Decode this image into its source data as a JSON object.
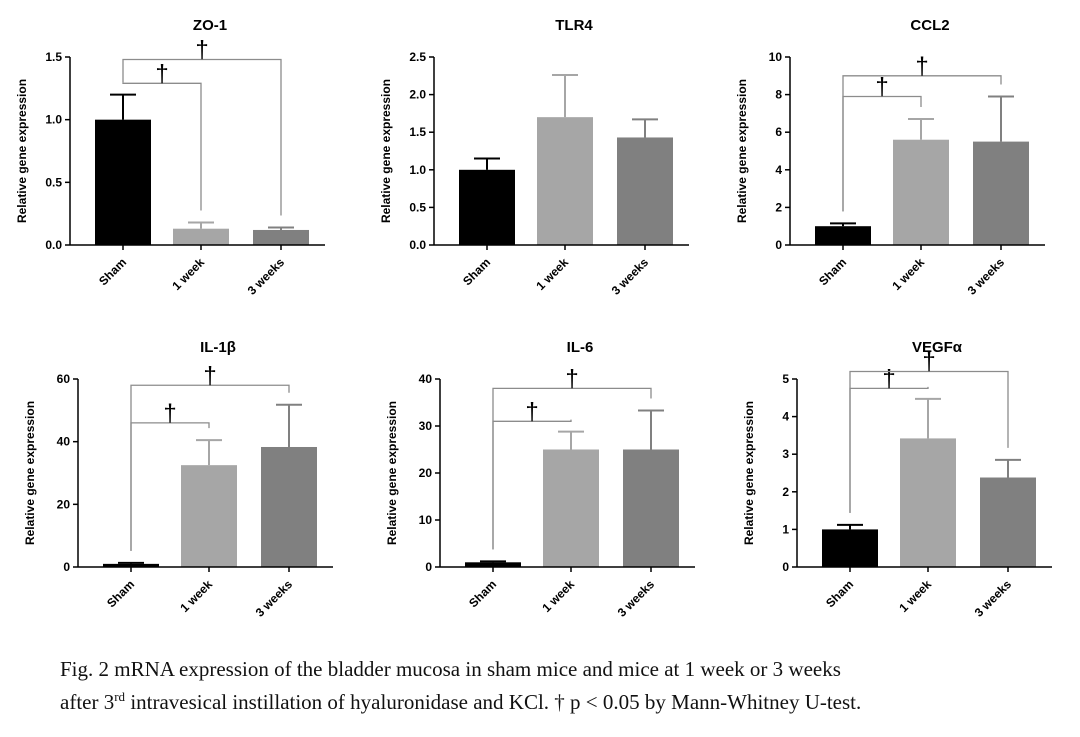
{
  "figure": {
    "caption_line1": "Fig. 2  mRNA expression of the bladder mucosa in sham mice and mice at 1 week or 3 weeks",
    "caption_line2_pre": "after 3",
    "caption_line2_sup": "rd",
    "caption_line2_post": " intravesical  instillation of hyaluronidase and KCl.  † p < 0.05 by Mann-Whitney U-test."
  },
  "colors": {
    "sham": "#000000",
    "week1": "#a6a6a6",
    "week3": "#808080",
    "axis": "#000000",
    "bracket": "#8c8c8c"
  },
  "chart_data": [
    {
      "type": "bar",
      "title": "ZO-1",
      "ylabel": "Relative gene expression",
      "categories": [
        "Sham",
        "1 week",
        "3 weeks"
      ],
      "values": [
        1.0,
        0.13,
        0.12
      ],
      "errors": [
        0.2,
        0.05,
        0.02
      ],
      "ylim": [
        0,
        1.5
      ],
      "yticks": [
        "0.0",
        "0.5",
        "1.0",
        "1.5"
      ],
      "significance": [
        {
          "from": "Sham",
          "to": "1 week",
          "level": 1.29,
          "label": "†"
        },
        {
          "from": "Sham",
          "to": "3 weeks",
          "level": 1.48,
          "label": "†"
        }
      ]
    },
    {
      "type": "bar",
      "title": "TLR4",
      "ylabel": "Relative gene expression",
      "categories": [
        "Sham",
        "1 week",
        "3 weeks"
      ],
      "values": [
        1.0,
        1.7,
        1.43
      ],
      "errors": [
        0.15,
        0.56,
        0.24
      ],
      "ylim": [
        0,
        2.5
      ],
      "yticks": [
        "0.0",
        "0.5",
        "1.0",
        "1.5",
        "2.0",
        "2.5"
      ],
      "significance": []
    },
    {
      "type": "bar",
      "title": "CCL2",
      "ylabel": "Relative gene expression",
      "categories": [
        "Sham",
        "1 week",
        "3 weeks"
      ],
      "values": [
        1.0,
        5.6,
        5.5
      ],
      "errors": [
        0.15,
        1.1,
        2.4
      ],
      "ylim": [
        0,
        10
      ],
      "yticks": [
        "0",
        "2",
        "4",
        "6",
        "8",
        "10"
      ],
      "significance": [
        {
          "from": "Sham",
          "to": "1 week",
          "level": 7.9,
          "label": "†"
        },
        {
          "from": "Sham",
          "to": "3 weeks",
          "level": 9.0,
          "label": "†"
        }
      ]
    },
    {
      "type": "bar",
      "title": "IL-1β",
      "ylabel": "Relative gene expression",
      "categories": [
        "Sham",
        "1 week",
        "3 weeks"
      ],
      "values": [
        1.0,
        32.5,
        38.3
      ],
      "errors": [
        0.3,
        8.0,
        13.5
      ],
      "ylim": [
        0,
        60
      ],
      "yticks": [
        "0",
        "20",
        "40",
        "60"
      ],
      "significance": [
        {
          "from": "Sham",
          "to": "1 week",
          "level": 46,
          "label": "†"
        },
        {
          "from": "Sham",
          "to": "3 weeks",
          "level": 58,
          "label": "†"
        }
      ]
    },
    {
      "type": "bar",
      "title": "IL-6",
      "ylabel": "Relative gene expression",
      "categories": [
        "Sham",
        "1 week",
        "3 weeks"
      ],
      "values": [
        1.0,
        25.0,
        25.0
      ],
      "errors": [
        0.2,
        3.8,
        8.3
      ],
      "ylim": [
        0,
        40
      ],
      "yticks": [
        "0",
        "10",
        "20",
        "30",
        "40"
      ],
      "significance": [
        {
          "from": "Sham",
          "to": "1 week",
          "level": 31,
          "label": "†"
        },
        {
          "from": "Sham",
          "to": "3 weeks",
          "level": 38,
          "label": "†"
        }
      ]
    },
    {
      "type": "bar",
      "title": "VEGFα",
      "ylabel": "Relative gene expression",
      "categories": [
        "Sham",
        "1 week",
        "3 weeks"
      ],
      "values": [
        1.0,
        3.42,
        2.38
      ],
      "errors": [
        0.12,
        1.05,
        0.47
      ],
      "ylim": [
        0,
        5
      ],
      "yticks": [
        "0",
        "1",
        "2",
        "3",
        "4",
        "5"
      ],
      "significance": [
        {
          "from": "Sham",
          "to": "1 week",
          "level": 4.75,
          "label": "†"
        },
        {
          "from": "Sham",
          "to": "3 weeks",
          "level": 5.2,
          "label": "†"
        }
      ]
    }
  ]
}
